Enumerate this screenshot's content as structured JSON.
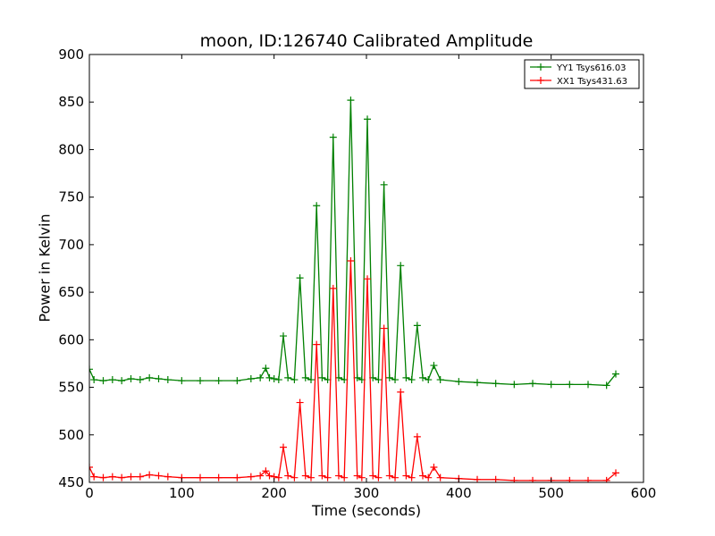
{
  "chart_data": {
    "type": "line",
    "title": "moon, ID:126740 Calibrated Amplitude",
    "xlabel": "Time (seconds)",
    "ylabel": "Power in Kelvin",
    "xlim": [
      0,
      600
    ],
    "ylim": [
      450,
      900
    ],
    "xticks": [
      0,
      100,
      200,
      300,
      400,
      500,
      600
    ],
    "yticks": [
      450,
      500,
      550,
      600,
      650,
      700,
      750,
      800,
      850,
      900
    ],
    "grid": false,
    "legend_position": "top-right",
    "marker": "+",
    "series": [
      {
        "name": "YY1 Tsys616.03",
        "color": "#008000",
        "x": [
          0,
          5,
          15,
          25,
          35,
          45,
          55,
          65,
          75,
          85,
          100,
          120,
          140,
          160,
          175,
          185,
          191,
          195,
          200,
          205,
          210,
          215,
          222,
          228,
          234,
          240,
          246,
          252,
          258,
          264,
          270,
          276,
          283,
          290,
          295,
          301,
          307,
          313,
          319,
          325,
          331,
          337,
          343,
          349,
          355,
          361,
          367,
          373,
          380,
          400,
          420,
          440,
          460,
          480,
          500,
          520,
          540,
          560,
          570
        ],
        "y": [
          569,
          558,
          557,
          558,
          557,
          559,
          558,
          560,
          559,
          558,
          557,
          557,
          557,
          557,
          559,
          560,
          570,
          560,
          559,
          558,
          604,
          560,
          558,
          665,
          560,
          558,
          741,
          560,
          558,
          813,
          560,
          558,
          852,
          560,
          558,
          832,
          560,
          558,
          763,
          560,
          558,
          678,
          560,
          558,
          615,
          560,
          558,
          573,
          558,
          556,
          555,
          554,
          553,
          554,
          553,
          553,
          553,
          552,
          564
        ]
      },
      {
        "name": "XX1 Tsys431.63",
        "color": "#ff0000",
        "x": [
          0,
          5,
          15,
          25,
          35,
          45,
          55,
          65,
          75,
          85,
          100,
          120,
          140,
          160,
          175,
          185,
          191,
          195,
          200,
          205,
          210,
          215,
          222,
          228,
          234,
          240,
          246,
          252,
          258,
          264,
          270,
          276,
          283,
          290,
          295,
          301,
          307,
          313,
          319,
          325,
          331,
          337,
          343,
          349,
          355,
          361,
          367,
          373,
          380,
          400,
          420,
          440,
          460,
          480,
          500,
          520,
          540,
          560,
          570
        ],
        "y": [
          466,
          456,
          455,
          456,
          455,
          456,
          456,
          458,
          457,
          456,
          455,
          455,
          455,
          455,
          456,
          457,
          462,
          457,
          456,
          455,
          487,
          457,
          455,
          534,
          457,
          455,
          595,
          457,
          455,
          654,
          457,
          455,
          683,
          457,
          455,
          664,
          457,
          455,
          612,
          457,
          455,
          545,
          457,
          455,
          498,
          457,
          455,
          466,
          455,
          454,
          453,
          453,
          452,
          452,
          452,
          452,
          452,
          452,
          460
        ]
      }
    ]
  }
}
